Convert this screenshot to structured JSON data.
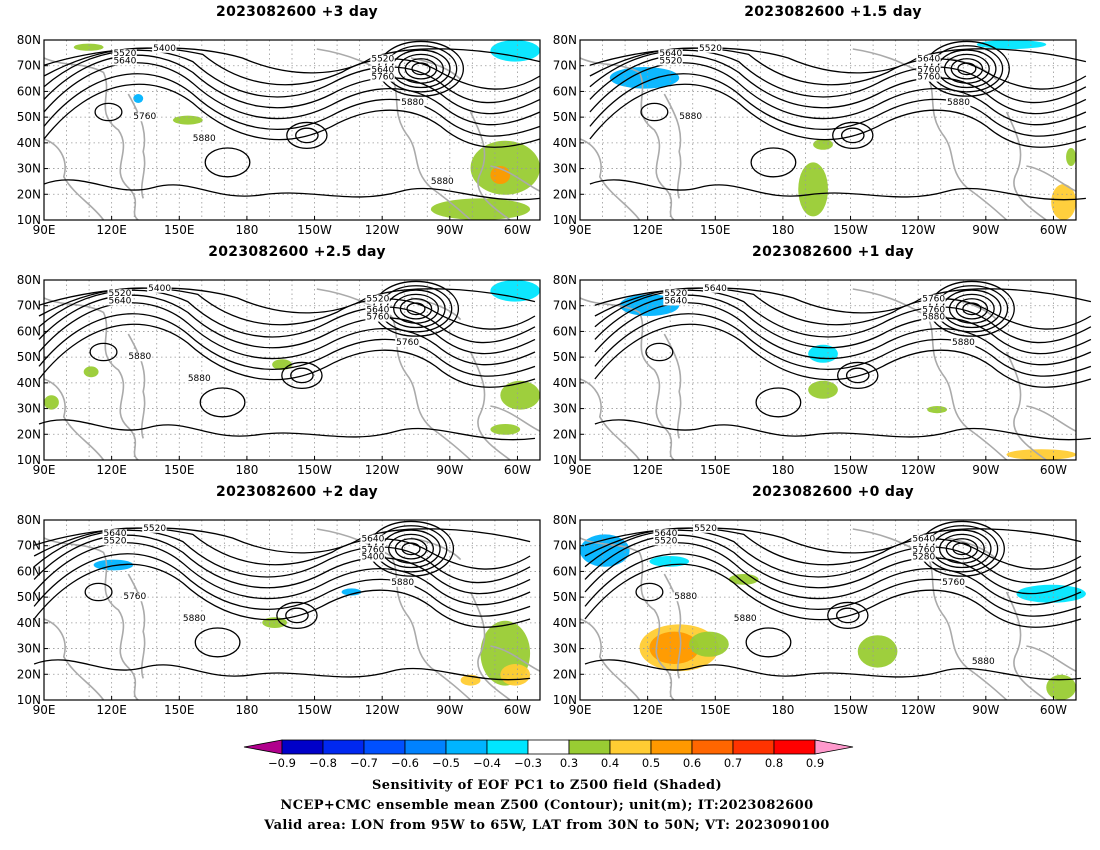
{
  "panels": [
    {
      "title": "2023082600  +3 day",
      "contours": [
        "5400",
        "5520",
        "5640",
        "5520",
        "5640",
        "5760",
        "5880",
        "5760",
        "5880",
        "5880"
      ]
    },
    {
      "title": "2023082600  +1.5 day",
      "contours": [
        "5520",
        "5640",
        "5520",
        "5640",
        "5760",
        "5760",
        "5880",
        "5880"
      ]
    },
    {
      "title": "2023082600  +2.5 day",
      "contours": [
        "5400",
        "5520",
        "5640",
        "5520",
        "5640",
        "5760",
        "5760",
        "5880",
        "5880"
      ]
    },
    {
      "title": "2023082600  +1 day",
      "contours": [
        "5640",
        "5520",
        "5640",
        "5760",
        "5760",
        "5880",
        "5880"
      ]
    },
    {
      "title": "2023082600  +2 day",
      "contours": [
        "5520",
        "5640",
        "5520",
        "5640",
        "5760",
        "5400",
        "5880",
        "5760",
        "5880"
      ]
    },
    {
      "title": "2023082600  +0 day",
      "contours": [
        "5520",
        "5640",
        "5520",
        "5640",
        "5760",
        "5280",
        "5760",
        "5880",
        "5880",
        "5880"
      ]
    }
  ],
  "y_ticks": [
    "10N",
    "20N",
    "30N",
    "40N",
    "50N",
    "60N",
    "70N",
    "80N"
  ],
  "x_ticks": [
    "90E",
    "120E",
    "150E",
    "180",
    "150W",
    "120W",
    "90W",
    "60W"
  ],
  "colorbar": {
    "labels": [
      "−0.9",
      "−0.8",
      "−0.7",
      "−0.6",
      "−0.5",
      "−0.4",
      "−0.3",
      "0.3",
      "0.4",
      "0.5",
      "0.6",
      "0.7",
      "0.8",
      "0.9"
    ],
    "colors": [
      "#b0008c",
      "#0000c8",
      "#0028f0",
      "#0050ff",
      "#0082ff",
      "#00b4ff",
      "#00e6ff",
      "#ffffff",
      "#99cc33",
      "#ffcc33",
      "#ff9900",
      "#ff6600",
      "#ff3300",
      "#ff0000",
      "#ff99cc"
    ]
  },
  "caption": {
    "line1": "Sensitivity of EOF PC1 to Z500 field (Shaded)",
    "line2": "NCEP+CMC ensemble mean Z500 (Contour); unit(m); IT:2023082600",
    "line3": "Valid area: LON from 95W to 65W, LAT from 30N to 50N; VT: 2023090100"
  }
}
